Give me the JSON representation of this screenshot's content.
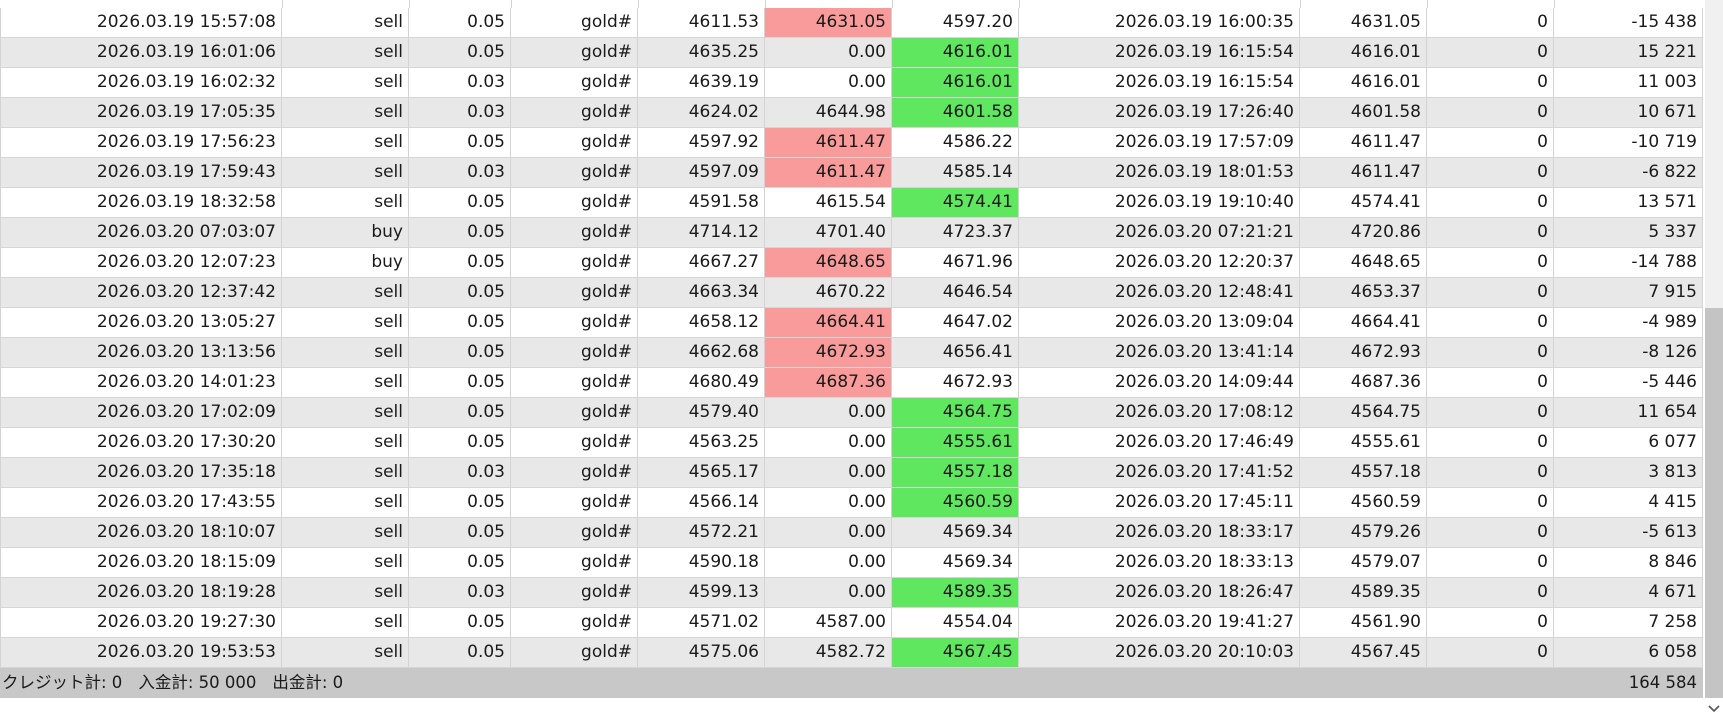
{
  "rows": [
    {
      "open_time": "2026.03.19 15:57:08",
      "type": "sell",
      "volume": "0.05",
      "symbol": "gold#",
      "price": "4611.53",
      "sl": "4631.05",
      "tp": "4597.20",
      "close_time": "2026.03.19 16:00:35",
      "close_price": "4631.05",
      "swap": "0",
      "profit": "-15 438",
      "sl_hit": true,
      "tp_hit": false
    },
    {
      "open_time": "2026.03.19 16:01:06",
      "type": "sell",
      "volume": "0.05",
      "symbol": "gold#",
      "price": "4635.25",
      "sl": "0.00",
      "tp": "4616.01",
      "close_time": "2026.03.19 16:15:54",
      "close_price": "4616.01",
      "swap": "0",
      "profit": "15 221",
      "sl_hit": false,
      "tp_hit": true
    },
    {
      "open_time": "2026.03.19 16:02:32",
      "type": "sell",
      "volume": "0.03",
      "symbol": "gold#",
      "price": "4639.19",
      "sl": "0.00",
      "tp": "4616.01",
      "close_time": "2026.03.19 16:15:54",
      "close_price": "4616.01",
      "swap": "0",
      "profit": "11 003",
      "sl_hit": false,
      "tp_hit": true
    },
    {
      "open_time": "2026.03.19 17:05:35",
      "type": "sell",
      "volume": "0.03",
      "symbol": "gold#",
      "price": "4624.02",
      "sl": "4644.98",
      "tp": "4601.58",
      "close_time": "2026.03.19 17:26:40",
      "close_price": "4601.58",
      "swap": "0",
      "profit": "10 671",
      "sl_hit": false,
      "tp_hit": true
    },
    {
      "open_time": "2026.03.19 17:56:23",
      "type": "sell",
      "volume": "0.05",
      "symbol": "gold#",
      "price": "4597.92",
      "sl": "4611.47",
      "tp": "4586.22",
      "close_time": "2026.03.19 17:57:09",
      "close_price": "4611.47",
      "swap": "0",
      "profit": "-10 719",
      "sl_hit": true,
      "tp_hit": false
    },
    {
      "open_time": "2026.03.19 17:59:43",
      "type": "sell",
      "volume": "0.03",
      "symbol": "gold#",
      "price": "4597.09",
      "sl": "4611.47",
      "tp": "4585.14",
      "close_time": "2026.03.19 18:01:53",
      "close_price": "4611.47",
      "swap": "0",
      "profit": "-6 822",
      "sl_hit": true,
      "tp_hit": false
    },
    {
      "open_time": "2026.03.19 18:32:58",
      "type": "sell",
      "volume": "0.05",
      "symbol": "gold#",
      "price": "4591.58",
      "sl": "4615.54",
      "tp": "4574.41",
      "close_time": "2026.03.19 19:10:40",
      "close_price": "4574.41",
      "swap": "0",
      "profit": "13 571",
      "sl_hit": false,
      "tp_hit": true
    },
    {
      "open_time": "2026.03.20 07:03:07",
      "type": "buy",
      "volume": "0.05",
      "symbol": "gold#",
      "price": "4714.12",
      "sl": "4701.40",
      "tp": "4723.37",
      "close_time": "2026.03.20 07:21:21",
      "close_price": "4720.86",
      "swap": "0",
      "profit": "5 337",
      "sl_hit": false,
      "tp_hit": false
    },
    {
      "open_time": "2026.03.20 12:07:23",
      "type": "buy",
      "volume": "0.05",
      "symbol": "gold#",
      "price": "4667.27",
      "sl": "4648.65",
      "tp": "4671.96",
      "close_time": "2026.03.20 12:20:37",
      "close_price": "4648.65",
      "swap": "0",
      "profit": "-14 788",
      "sl_hit": true,
      "tp_hit": false
    },
    {
      "open_time": "2026.03.20 12:37:42",
      "type": "sell",
      "volume": "0.05",
      "symbol": "gold#",
      "price": "4663.34",
      "sl": "4670.22",
      "tp": "4646.54",
      "close_time": "2026.03.20 12:48:41",
      "close_price": "4653.37",
      "swap": "0",
      "profit": "7 915",
      "sl_hit": false,
      "tp_hit": false
    },
    {
      "open_time": "2026.03.20 13:05:27",
      "type": "sell",
      "volume": "0.05",
      "symbol": "gold#",
      "price": "4658.12",
      "sl": "4664.41",
      "tp": "4647.02",
      "close_time": "2026.03.20 13:09:04",
      "close_price": "4664.41",
      "swap": "0",
      "profit": "-4 989",
      "sl_hit": true,
      "tp_hit": false
    },
    {
      "open_time": "2026.03.20 13:13:56",
      "type": "sell",
      "volume": "0.05",
      "symbol": "gold#",
      "price": "4662.68",
      "sl": "4672.93",
      "tp": "4656.41",
      "close_time": "2026.03.20 13:41:14",
      "close_price": "4672.93",
      "swap": "0",
      "profit": "-8 126",
      "sl_hit": true,
      "tp_hit": false
    },
    {
      "open_time": "2026.03.20 14:01:23",
      "type": "sell",
      "volume": "0.05",
      "symbol": "gold#",
      "price": "4680.49",
      "sl": "4687.36",
      "tp": "4672.93",
      "close_time": "2026.03.20 14:09:44",
      "close_price": "4687.36",
      "swap": "0",
      "profit": "-5 446",
      "sl_hit": true,
      "tp_hit": false
    },
    {
      "open_time": "2026.03.20 17:02:09",
      "type": "sell",
      "volume": "0.05",
      "symbol": "gold#",
      "price": "4579.40",
      "sl": "0.00",
      "tp": "4564.75",
      "close_time": "2026.03.20 17:08:12",
      "close_price": "4564.75",
      "swap": "0",
      "profit": "11 654",
      "sl_hit": false,
      "tp_hit": true
    },
    {
      "open_time": "2026.03.20 17:30:20",
      "type": "sell",
      "volume": "0.05",
      "symbol": "gold#",
      "price": "4563.25",
      "sl": "0.00",
      "tp": "4555.61",
      "close_time": "2026.03.20 17:46:49",
      "close_price": "4555.61",
      "swap": "0",
      "profit": "6 077",
      "sl_hit": false,
      "tp_hit": true
    },
    {
      "open_time": "2026.03.20 17:35:18",
      "type": "sell",
      "volume": "0.03",
      "symbol": "gold#",
      "price": "4565.17",
      "sl": "0.00",
      "tp": "4557.18",
      "close_time": "2026.03.20 17:41:52",
      "close_price": "4557.18",
      "swap": "0",
      "profit": "3 813",
      "sl_hit": false,
      "tp_hit": true
    },
    {
      "open_time": "2026.03.20 17:43:55",
      "type": "sell",
      "volume": "0.05",
      "symbol": "gold#",
      "price": "4566.14",
      "sl": "0.00",
      "tp": "4560.59",
      "close_time": "2026.03.20 17:45:11",
      "close_price": "4560.59",
      "swap": "0",
      "profit": "4 415",
      "sl_hit": false,
      "tp_hit": true
    },
    {
      "open_time": "2026.03.20 18:10:07",
      "type": "sell",
      "volume": "0.05",
      "symbol": "gold#",
      "price": "4572.21",
      "sl": "0.00",
      "tp": "4569.34",
      "close_time": "2026.03.20 18:33:17",
      "close_price": "4579.26",
      "swap": "0",
      "profit": "-5 613",
      "sl_hit": false,
      "tp_hit": false
    },
    {
      "open_time": "2026.03.20 18:15:09",
      "type": "sell",
      "volume": "0.05",
      "symbol": "gold#",
      "price": "4590.18",
      "sl": "0.00",
      "tp": "4569.34",
      "close_time": "2026.03.20 18:33:13",
      "close_price": "4579.07",
      "swap": "0",
      "profit": "8 846",
      "sl_hit": false,
      "tp_hit": false
    },
    {
      "open_time": "2026.03.20 18:19:28",
      "type": "sell",
      "volume": "0.03",
      "symbol": "gold#",
      "price": "4599.13",
      "sl": "0.00",
      "tp": "4589.35",
      "close_time": "2026.03.20 18:26:47",
      "close_price": "4589.35",
      "swap": "0",
      "profit": "4 671",
      "sl_hit": false,
      "tp_hit": true
    },
    {
      "open_time": "2026.03.20 19:27:30",
      "type": "sell",
      "volume": "0.05",
      "symbol": "gold#",
      "price": "4571.02",
      "sl": "4587.00",
      "tp": "4554.04",
      "close_time": "2026.03.20 19:41:27",
      "close_price": "4561.90",
      "swap": "0",
      "profit": "7 258",
      "sl_hit": false,
      "tp_hit": false
    },
    {
      "open_time": "2026.03.20 19:53:53",
      "type": "sell",
      "volume": "0.05",
      "symbol": "gold#",
      "price": "4575.06",
      "sl": "4582.72",
      "tp": "4567.45",
      "close_time": "2026.03.20 20:10:03",
      "close_price": "4567.45",
      "swap": "0",
      "profit": "6 058",
      "sl_hit": false,
      "tp_hit": true
    }
  ],
  "footer": {
    "credit": "クレジット計: 0",
    "deposit": "入金計: 50 000",
    "withdrawal": "出金計: 0",
    "total": "164 584"
  },
  "colors": {
    "sl_hit": "#f99b9b",
    "tp_hit": "#5fe85f",
    "row_even": "#e8e8e8",
    "row_odd": "#ffffff",
    "footer_bg": "#c8c8c8"
  },
  "scrollbar": {
    "position_fraction": 0.44,
    "visible_fraction": 0.56
  }
}
